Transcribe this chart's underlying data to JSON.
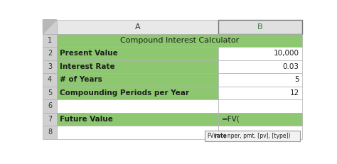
{
  "col_header_A": "A",
  "col_header_B": "B",
  "rows": [
    {
      "row_num": "1",
      "col_A": "Compound Interest Calculator",
      "col_B": "",
      "merged": true,
      "a_green": true,
      "b_green": true
    },
    {
      "row_num": "2",
      "col_A": "Present Value",
      "col_B": "10,000",
      "merged": false,
      "a_green": true,
      "b_green": false
    },
    {
      "row_num": "3",
      "col_A": "Interest Rate",
      "col_B": "0.03",
      "merged": false,
      "a_green": true,
      "b_green": false
    },
    {
      "row_num": "4",
      "col_A": "# of Years",
      "col_B": "5",
      "merged": false,
      "a_green": true,
      "b_green": false
    },
    {
      "row_num": "5",
      "col_A": "Compounding Periods per Year",
      "col_B": "12",
      "merged": false,
      "a_green": true,
      "b_green": false
    },
    {
      "row_num": "6",
      "col_A": "",
      "col_B": "",
      "merged": false,
      "a_green": false,
      "b_green": false
    },
    {
      "row_num": "7",
      "col_A": "Future Value",
      "col_B": "=FV(",
      "merged": false,
      "a_green": true,
      "b_green": true
    },
    {
      "row_num": "8",
      "col_A": "",
      "col_B": "",
      "merged": false,
      "a_green": false,
      "b_green": false
    }
  ],
  "green_color": "#8DC870",
  "white_color": "#FFFFFF",
  "gray_header_bg": "#D0D0D0",
  "border_color": "#B0B0B0",
  "green_border": "#5C9E3A",
  "tooltip_parts": [
    [
      "FV(",
      false
    ],
    [
      "rate",
      true
    ],
    [
      ", nper, pmt, [pv], [type])",
      false
    ]
  ],
  "tooltip_bg": "#F2F2F2",
  "tooltip_border": "#999999"
}
